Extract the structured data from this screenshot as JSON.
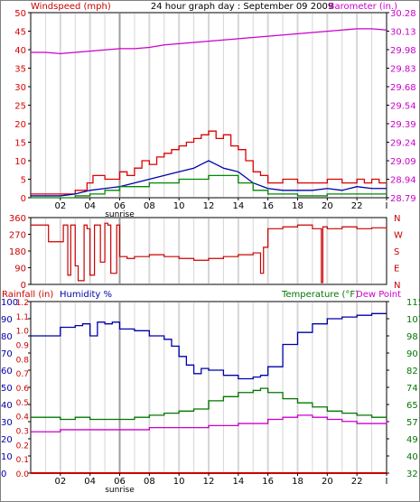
{
  "header": {
    "left_label": "Windspeed (mph)",
    "title": "24 hour graph day : September 09 2009",
    "right_label": "Barometer (in.)"
  },
  "colors": {
    "wind_max": "#dd0000",
    "wind_avg": "#0000aa",
    "wind_gust": "#008800",
    "barometer": "#cc00cc",
    "direction": "#cc0000",
    "humidity": "#0000aa",
    "temperature": "#007700",
    "dewpoint": "#cc00cc",
    "rain": "#cc0000",
    "grid": "#d6d6d6",
    "sunrise_grid": "#9e9e9e"
  },
  "x_axis": {
    "labels": [
      "02",
      "04",
      "06",
      "08",
      "10",
      "12",
      "14",
      "16",
      "18",
      "20",
      "22",
      "I"
    ],
    "sunrise_label": "sunrise"
  },
  "chart_data": [
    {
      "type": "line",
      "title": "24 hour graph day : September 09 2009",
      "left_axis_label": "Windspeed (mph)",
      "right_axis_label": "Barometer (in.)",
      "x_range_hours": [
        0,
        24
      ],
      "left_ticks": [
        "0",
        "5",
        "10",
        "15",
        "20",
        "25",
        "30",
        "35",
        "40",
        "45",
        "50"
      ],
      "right_ticks": [
        "28.79",
        "28.94",
        "29.09",
        "29.24",
        "29.39",
        "29.54",
        "29.68",
        "29.83",
        "29.98",
        "30.13",
        "30.28"
      ],
      "ylim_left": [
        0,
        50
      ],
      "ylim_right": [
        28.79,
        30.28
      ],
      "series": [
        {
          "key": "wind_max",
          "x": [
            0,
            1,
            2,
            3,
            3.8,
            4.2,
            5,
            6,
            6.5,
            7,
            7.5,
            8,
            8.5,
            9,
            9.5,
            10,
            10.5,
            11,
            11.5,
            12,
            12.5,
            13,
            13.5,
            14,
            14.5,
            15,
            15.5,
            16,
            17,
            18,
            19,
            20,
            21,
            22,
            22.5,
            23,
            23.5,
            24
          ],
          "y": [
            1,
            1,
            1,
            2,
            4,
            6,
            5,
            7,
            6,
            8,
            10,
            9,
            11,
            12,
            13,
            14,
            15,
            16,
            17,
            18,
            16,
            17,
            14,
            13,
            10,
            7,
            6,
            4,
            5,
            4,
            4,
            5,
            4,
            5,
            4,
            5,
            4,
            4
          ]
        },
        {
          "key": "wind_avg",
          "x": [
            0,
            2,
            3,
            4,
            5,
            6,
            7,
            8,
            9,
            10,
            11,
            11.5,
            12,
            12.5,
            13,
            14,
            15,
            16,
            17,
            18,
            19,
            20,
            21,
            22,
            23,
            24
          ],
          "y": [
            0.5,
            0.5,
            1,
            2,
            2.5,
            3,
            4,
            5,
            6,
            7,
            8,
            9,
            10,
            9,
            8,
            7,
            4,
            2.5,
            2,
            2,
            2,
            2.5,
            2,
            3,
            2.5,
            2.5
          ]
        },
        {
          "key": "wind_gust",
          "x": [
            0,
            3,
            4,
            5,
            6,
            7,
            8,
            9,
            10,
            11,
            12,
            13,
            14,
            15,
            16,
            18,
            20,
            22,
            24
          ],
          "y": [
            0,
            0.5,
            1,
            2,
            3,
            3,
            4,
            4,
            5,
            5,
            6,
            6,
            4,
            2,
            1,
            0.5,
            1,
            1,
            1
          ]
        },
        {
          "key": "barometer",
          "axis": "right",
          "x": [
            0,
            1,
            2,
            3,
            4,
            5,
            6,
            7,
            8,
            9,
            10,
            11,
            12,
            13,
            14,
            15,
            16,
            17,
            18,
            19,
            20,
            21,
            22,
            23,
            24
          ],
          "y": [
            29.96,
            29.96,
            29.95,
            29.96,
            29.97,
            29.98,
            29.99,
            29.99,
            30.0,
            30.02,
            30.03,
            30.04,
            30.05,
            30.06,
            30.07,
            30.08,
            30.09,
            30.1,
            30.11,
            30.12,
            30.13,
            30.14,
            30.15,
            30.15,
            30.14
          ]
        }
      ]
    },
    {
      "type": "line",
      "x_range_hours": [
        0,
        24
      ],
      "left_ticks": [
        "0",
        "90",
        "180",
        "270",
        "360"
      ],
      "right_ticks": [
        "N",
        "W",
        "S",
        "E",
        "N"
      ],
      "ylim": [
        0,
        360
      ],
      "series": [
        {
          "key": "direction",
          "x": [
            0,
            1,
            1.2,
            2,
            2.2,
            2.5,
            2.7,
            3,
            3.2,
            3.6,
            3.8,
            4.0,
            4.3,
            4.7,
            5.0,
            5.2,
            5.4,
            5.8,
            6.0,
            6.5,
            7,
            8,
            9,
            10,
            11,
            12,
            13,
            14,
            15,
            15.5,
            15.7,
            16,
            17,
            18,
            19,
            19.5,
            19.6,
            19.7,
            20,
            21,
            22,
            23,
            24
          ],
          "y": [
            320,
            320,
            230,
            230,
            320,
            50,
            320,
            100,
            20,
            320,
            300,
            50,
            320,
            120,
            330,
            320,
            60,
            320,
            150,
            140,
            150,
            160,
            150,
            140,
            130,
            140,
            150,
            160,
            170,
            60,
            200,
            300,
            310,
            320,
            300,
            300,
            10,
            310,
            300,
            310,
            300,
            305,
            300
          ]
        }
      ]
    },
    {
      "type": "line",
      "x_range_hours": [
        0,
        24
      ],
      "label_rainfall": "Rainfall (in)",
      "label_humidity": "Humidity %",
      "label_temperature": "Temperature (°F)",
      "label_dewpoint": "Dew Point",
      "rain_ticks": [
        "0.0",
        "0.1",
        "0.2",
        "0.3",
        "0.4",
        "0.5",
        "0.6",
        "0.7",
        "0.8",
        "0.9",
        "1.0",
        "1.1",
        "1.2"
      ],
      "humidity_ticks": [
        "0",
        "10",
        "20",
        "30",
        "40",
        "50",
        "60",
        "70",
        "80",
        "90",
        "100"
      ],
      "temp_ticks": [
        "32",
        "40",
        "49",
        "57",
        "65",
        "74",
        "82",
        "90",
        "98",
        "107",
        "115"
      ],
      "ylim_rain": [
        0,
        1.2
      ],
      "ylim_humidity": [
        0,
        100
      ],
      "ylim_temp": [
        32,
        115
      ],
      "series": [
        {
          "key": "rain",
          "axis": "rain",
          "x": [
            0,
            24
          ],
          "y": [
            0,
            0
          ]
        },
        {
          "key": "humidity",
          "axis": "humidity",
          "x": [
            0,
            1,
            2,
            3,
            3.5,
            4,
            4.5,
            5,
            5.5,
            6,
            7,
            8,
            9,
            9.5,
            10,
            10.5,
            11,
            11.5,
            12,
            12.5,
            13,
            14,
            15,
            15.5,
            16,
            17,
            18,
            19,
            20,
            21,
            22,
            23,
            24
          ],
          "y": [
            80,
            80,
            85,
            86,
            87,
            80,
            88,
            87,
            88,
            84,
            83,
            80,
            78,
            74,
            68,
            63,
            58,
            61,
            60,
            60,
            57,
            55,
            56,
            57,
            62,
            75,
            82,
            87,
            90,
            91,
            92,
            93,
            93
          ]
        },
        {
          "key": "temperature",
          "axis": "temp",
          "x": [
            0,
            2,
            3,
            4,
            5,
            6,
            7,
            8,
            9,
            10,
            11,
            12,
            13,
            14,
            15,
            15.5,
            16,
            17,
            18,
            19,
            20,
            21,
            22,
            23,
            24
          ],
          "y": [
            59,
            58,
            59,
            58,
            58,
            58,
            59,
            60,
            61,
            62,
            63,
            67,
            69,
            71,
            72,
            73,
            71,
            68,
            66,
            64,
            62,
            61,
            60,
            59,
            59
          ]
        },
        {
          "key": "dewpoint",
          "axis": "temp",
          "x": [
            0,
            1,
            2,
            3,
            4,
            5,
            6,
            7,
            8,
            9,
            10,
            11,
            12,
            13,
            14,
            15,
            16,
            17,
            18,
            19,
            20,
            21,
            22,
            23,
            24
          ],
          "y": [
            52,
            52,
            53,
            53,
            53,
            53,
            53,
            53,
            54,
            54,
            54,
            54,
            55,
            55,
            56,
            56,
            58,
            59,
            60,
            59,
            58,
            57,
            56,
            56,
            57
          ]
        }
      ]
    }
  ]
}
